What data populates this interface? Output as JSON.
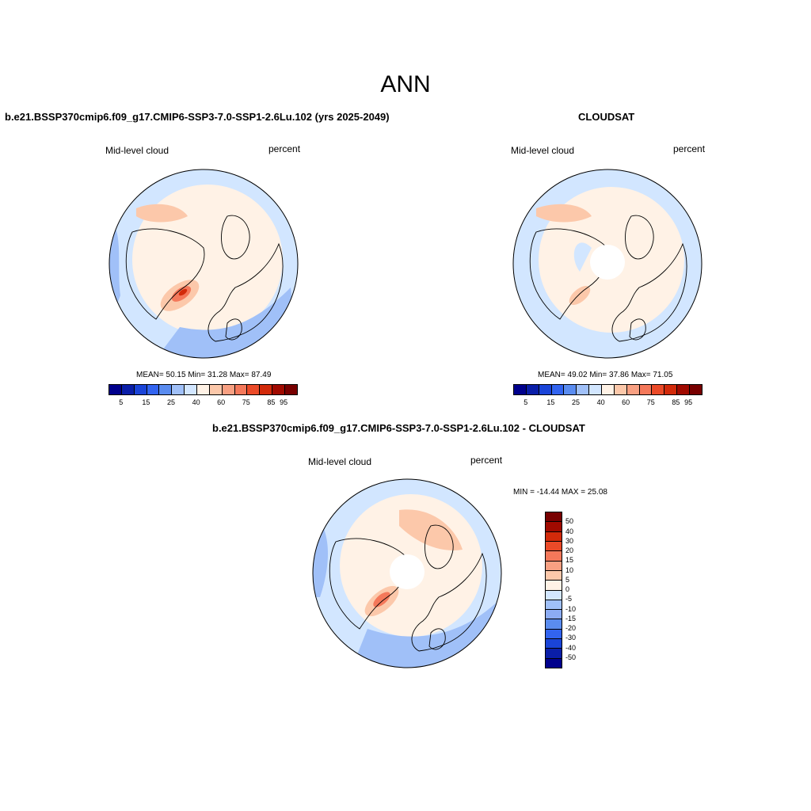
{
  "title": "ANN",
  "panels": [
    {
      "title": "b.e21.BSSP370cmip6.f09_g17.CMIP6-SSP3-7.0-SSP1-2.6Lu.102 (yrs 2025-2049)",
      "left_label": "Mid-level cloud",
      "right_label": "percent",
      "stats": "MEAN=  50.15  Min=  31.28  Max=  87.49",
      "has_pole_hole": false
    },
    {
      "title": "CLOUDSAT",
      "left_label": "Mid-level cloud",
      "right_label": "percent",
      "stats": "MEAN=  49.02  Min=  37.86  Max=  71.05",
      "has_pole_hole": true
    },
    {
      "title": "b.e21.BSSP370cmip6.f09_g17.CMIP6-SSP3-7.0-SSP1-2.6Lu.102 - CLOUDSAT",
      "left_label": "Mid-level cloud",
      "right_label": "percent",
      "stats": "MIN = -14.44 MAX =  25.08",
      "has_pole_hole": true
    }
  ],
  "colorbar_abs": {
    "colors": [
      "#00008c",
      "#0a1ea8",
      "#1a44d8",
      "#3264f0",
      "#5a8cf0",
      "#a0c0f8",
      "#d2e6ff",
      "#fff2e6",
      "#fcc8aa",
      "#f8a082",
      "#f4785a",
      "#eb4a28",
      "#d22a0a",
      "#a00a00",
      "#780000"
    ],
    "tick_labels": [
      "5",
      "15",
      "25",
      "40",
      "60",
      "75",
      "85",
      "95"
    ]
  },
  "colorbar_diff": {
    "colors": [
      "#780000",
      "#a00a00",
      "#d22a0a",
      "#eb4a28",
      "#f4785a",
      "#f8a082",
      "#fcc8aa",
      "#fff2e6",
      "#d2e6ff",
      "#a0c0f8",
      "#8cacf4",
      "#5a8cf0",
      "#3264f0",
      "#1a44d8",
      "#0a1ea8",
      "#00008c"
    ],
    "tick_labels": [
      "50",
      "40",
      "30",
      "20",
      "15",
      "10",
      "5",
      "0",
      "-5",
      "-10",
      "-15",
      "-20",
      "-30",
      "-40",
      "-50"
    ]
  },
  "colors": {
    "light_blue": "#d2e6ff",
    "mid_blue": "#a0c0f8",
    "peach": "#fff2e6",
    "salmon": "#fcc8aa",
    "orange": "#f4785a",
    "red": "#d22a0a",
    "coast": "#000000"
  }
}
